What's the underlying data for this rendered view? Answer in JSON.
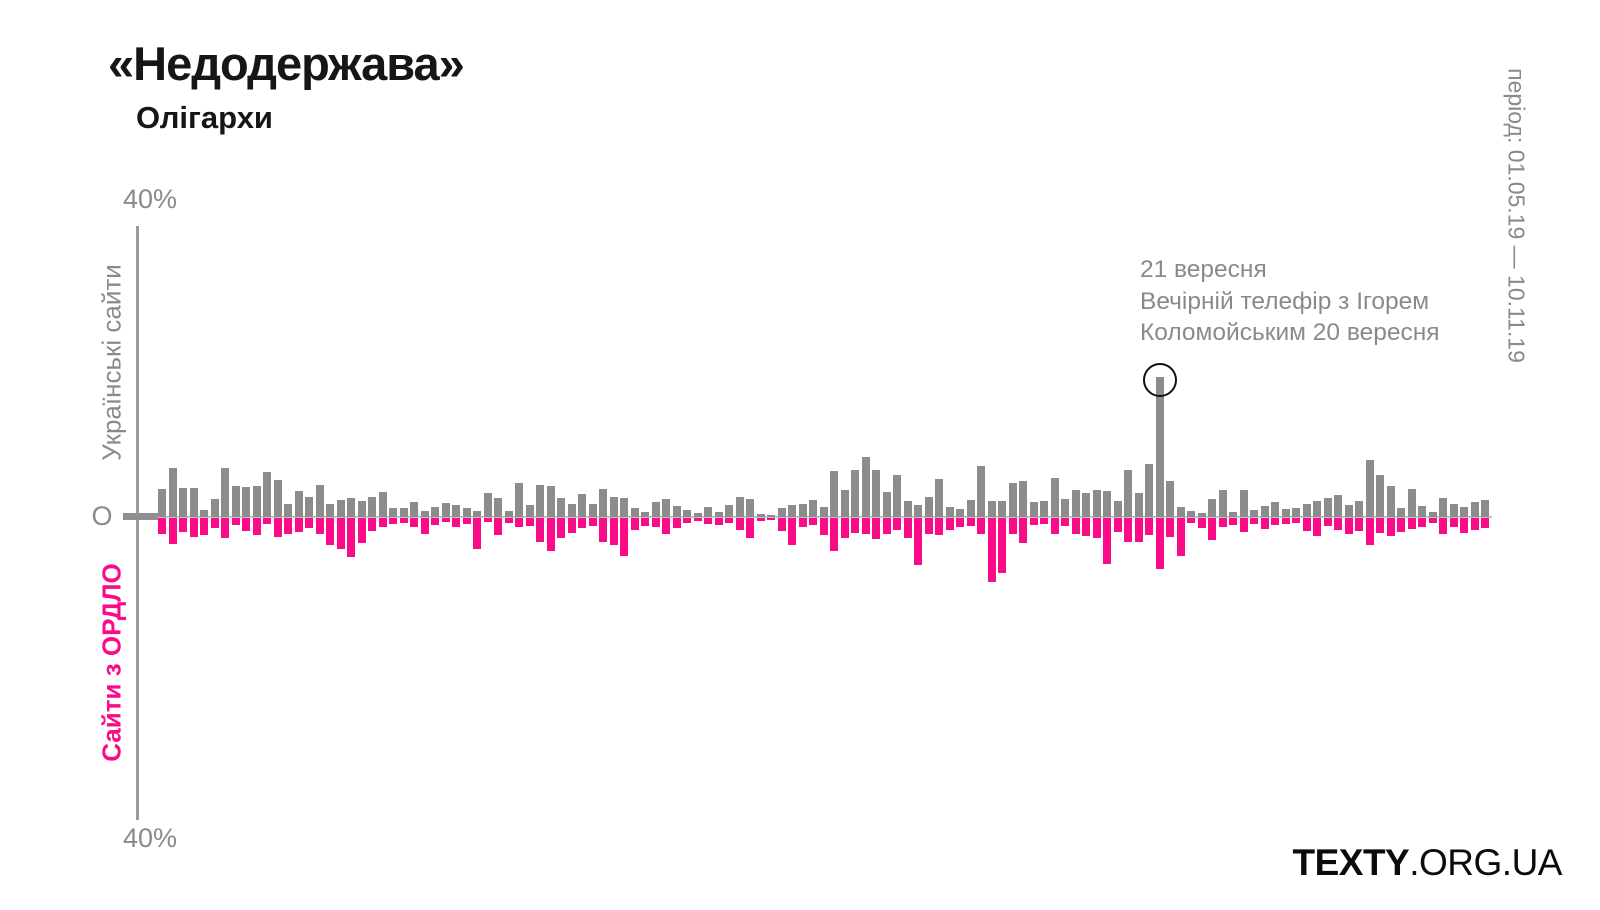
{
  "title": "«Недодержава»",
  "subtitle": "Олігархи",
  "period_label": "період: 01.05.19 — 10.11.19",
  "axis": {
    "top_label": "40%",
    "zero_label": "О",
    "bottom_label": "40%"
  },
  "series_labels": {
    "up": "Українські сайти",
    "down": "Сайти з ОРДЛО"
  },
  "annotation": {
    "line1": "21 вересня",
    "line2": "Вечірній телефір з Ігорем",
    "line3": "Коломойським 20 вересня"
  },
  "logo": {
    "bold": "TEXTY",
    "rest": ".ORG.UA"
  },
  "colors": {
    "bar_up": "#8c8c8c",
    "bar_down": "#fb0b88",
    "axis": "#9b9b9b",
    "zero_line": "#c2c2c2",
    "gray_text": "#8a8a8a",
    "title_text": "#161616",
    "circle_stroke": "#111111"
  },
  "chart_data": {
    "type": "bar",
    "subtype": "diverging-mirror",
    "unit": "%",
    "ylim": [
      -40,
      40
    ],
    "y_ticks_shown": [
      "40%",
      "О",
      "40%"
    ],
    "x_period": "01.05.19 — 10.11.19",
    "legend_position": "rotated labels on left axis",
    "grid": false,
    "annotated_bar_index": 95,
    "annotation_text": "21 вересня Вечірній телефір з Ігорем Коломойським 20 вересня",
    "series": [
      {
        "name": "Українські сайти",
        "direction": "up",
        "color": "#8c8c8c",
        "values": [
          3.6,
          6.3,
          3.7,
          3.7,
          0.9,
          2.3,
          6.2,
          3.9,
          3.8,
          4.0,
          5.7,
          4.7,
          1.7,
          3.3,
          2.6,
          4.1,
          1.6,
          2.2,
          2.4,
          2.0,
          2.5,
          3.2,
          1.2,
          1.1,
          1.9,
          0.8,
          1.3,
          1.8,
          1.5,
          1.2,
          0.8,
          3.0,
          2.4,
          0.8,
          4.3,
          1.5,
          4.1,
          3.9,
          2.4,
          1.6,
          2.9,
          1.7,
          3.6,
          2.6,
          2.4,
          1.1,
          0.7,
          1.9,
          2.3,
          1.4,
          0.9,
          0.5,
          1.3,
          0.7,
          1.5,
          2.5,
          2.3,
          0.4,
          0.3,
          1.2,
          1.5,
          1.7,
          2.2,
          1.3,
          5.9,
          3.5,
          6.0,
          7.6,
          6.0,
          3.2,
          5.3,
          2.0,
          1.5,
          2.5,
          4.9,
          1.3,
          1.0,
          2.2,
          6.5,
          2.0,
          2.1,
          4.3,
          4.6,
          1.9,
          2.1,
          5.0,
          2.3,
          3.4,
          3.1,
          3.5,
          3.3,
          2.0,
          6.0,
          3.0,
          6.7,
          17.8,
          4.6,
          1.3,
          0.8,
          0.5,
          2.3,
          3.5,
          0.6,
          3.4,
          0.9,
          1.4,
          1.9,
          1.0,
          1.2,
          1.7,
          2.0,
          2.4,
          2.8,
          1.5,
          2.0,
          7.2,
          5.4,
          3.9,
          1.2,
          3.6,
          1.4,
          0.6,
          2.4,
          1.6,
          1.3,
          1.9,
          2.2
        ]
      },
      {
        "name": "Сайти з ОРДЛО",
        "direction": "down",
        "color": "#fb0b88",
        "values": [
          2.1,
          3.3,
          1.8,
          2.4,
          2.2,
          1.3,
          2.6,
          0.9,
          1.6,
          2.2,
          0.8,
          2.4,
          2.0,
          1.8,
          1.3,
          2.0,
          3.5,
          4.0,
          5.0,
          3.2,
          1.7,
          1.1,
          0.8,
          0.6,
          1.2,
          2.1,
          0.9,
          0.5,
          1.2,
          0.8,
          4.0,
          0.5,
          2.2,
          0.7,
          1.2,
          1.0,
          3.0,
          4.2,
          2.6,
          1.9,
          1.3,
          1.0,
          3.1,
          3.5,
          4.8,
          1.5,
          1.0,
          1.1,
          2.1,
          1.3,
          0.7,
          0.4,
          0.8,
          0.9,
          0.6,
          1.5,
          2.6,
          0.4,
          0.3,
          1.7,
          3.4,
          1.2,
          0.9,
          2.2,
          4.2,
          2.5,
          1.9,
          2.1,
          2.7,
          2.0,
          1.5,
          2.5,
          6.0,
          2.0,
          2.2,
          1.5,
          1.2,
          1.0,
          2.0,
          8.2,
          7.0,
          2.0,
          3.2,
          0.9,
          0.8,
          2.0,
          1.0,
          2.0,
          2.3,
          2.5,
          5.8,
          1.8,
          3.0,
          3.0,
          2.2,
          6.5,
          2.4,
          4.8,
          0.7,
          1.3,
          2.8,
          1.1,
          0.9,
          1.8,
          0.8,
          1.4,
          0.9,
          0.8,
          0.6,
          1.6,
          2.3,
          1.0,
          1.5,
          2.0,
          1.6,
          3.4,
          1.9,
          2.3,
          1.8,
          1.4,
          1.1,
          0.6,
          2.0,
          1.2,
          1.9,
          1.5,
          1.3
        ]
      }
    ]
  }
}
